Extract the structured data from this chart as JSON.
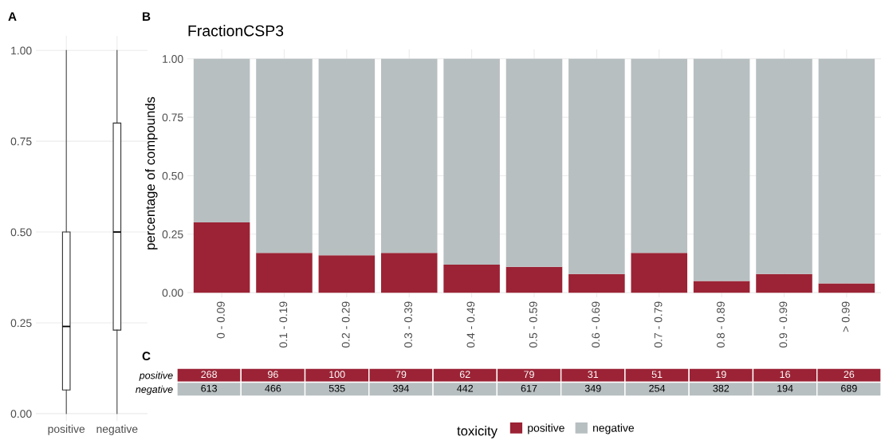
{
  "chart_data": [
    {
      "type": "box",
      "annotations": [
        "A"
      ],
      "categories": [
        "positive",
        "negative"
      ],
      "boxes": [
        {
          "low": 0,
          "q1": 0.065,
          "median": 0.24,
          "q3": 0.5,
          "high": 1.0
        },
        {
          "low": 0,
          "q1": 0.23,
          "median": 0.5,
          "q3": 0.8,
          "high": 1.0
        }
      ],
      "ylim": [
        -0.02,
        1.04
      ],
      "yticks": [
        {
          "value": 0,
          "label": "0.00"
        },
        {
          "value": 0.25,
          "label": "0.25"
        },
        {
          "value": 0.5,
          "label": "0.50"
        },
        {
          "value": 0.75,
          "label": "0.75"
        },
        {
          "value": 1,
          "label": "1.00"
        }
      ],
      "grid": true
    },
    {
      "type": "bar",
      "stacked": true,
      "title": "FractionCSP3",
      "ylabel": "percentage of compounds",
      "annotations": [
        "B"
      ],
      "categories": [
        "0 - 0.09",
        "0.1 - 0.19",
        "0.2 - 0.29",
        "0.3 - 0.39",
        "0.4 - 0.49",
        "0.5 - 0.59",
        "0.6 - 0.69",
        "0.7 - 0.79",
        "0.8 - 0.89",
        "0.9 - 0.99",
        "> 0.99"
      ],
      "series": [
        {
          "name": "positive",
          "color": "#9b2335",
          "values": [
            0.3,
            0.17,
            0.16,
            0.17,
            0.12,
            0.11,
            0.08,
            0.17,
            0.05,
            0.08,
            0.04
          ]
        },
        {
          "name": "negative",
          "color": "#b8bfc1",
          "values": [
            0.7,
            0.83,
            0.84,
            0.83,
            0.88,
            0.89,
            0.92,
            0.83,
            0.95,
            0.92,
            0.96
          ]
        }
      ],
      "ylim": [
        -0.02,
        1.04
      ],
      "yticks": [
        {
          "value": 0,
          "label": "0.00"
        },
        {
          "value": 0.25,
          "label": "0.25"
        },
        {
          "value": 0.5,
          "label": "0.50"
        },
        {
          "value": 0.75,
          "label": "0.75"
        },
        {
          "value": 1,
          "label": "1.00"
        }
      ],
      "grid": true,
      "legend": "bottom",
      "legend_title": "toxicity"
    },
    {
      "type": "heatmap",
      "annotations": [
        "C"
      ],
      "data_labels": true,
      "categories": [
        null,
        null,
        null,
        null,
        null,
        null,
        null,
        null,
        null,
        null,
        null
      ],
      "y_categories": [
        "positive",
        "negative"
      ],
      "colors": [
        "#9b2335",
        "#b8bfc1"
      ],
      "cells": [
        [
          268,
          96,
          100,
          79,
          62,
          79,
          31,
          51,
          19,
          16,
          26
        ],
        [
          613,
          466,
          535,
          394,
          442,
          617,
          349,
          254,
          382,
          194,
          689
        ]
      ]
    }
  ]
}
